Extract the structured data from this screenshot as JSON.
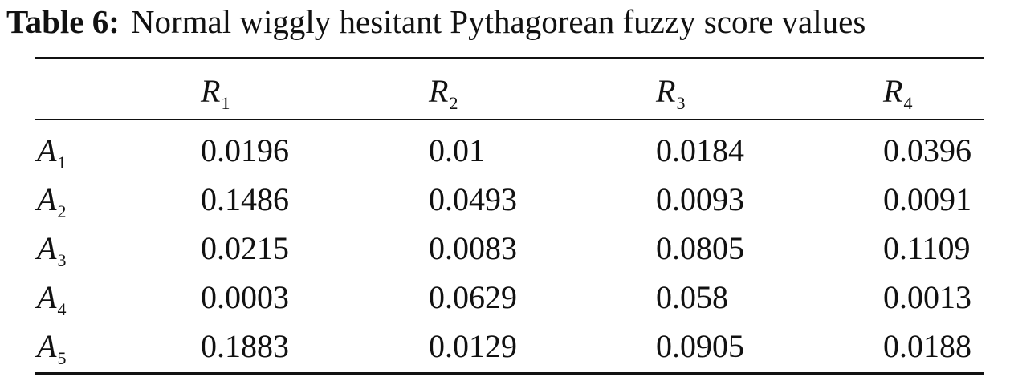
{
  "caption": {
    "label": "Table 6:",
    "text": "Normal wiggly hesitant Pythagorean fuzzy score values"
  },
  "table": {
    "columns": [
      {
        "symbol": "R",
        "sub": "1"
      },
      {
        "symbol": "R",
        "sub": "2"
      },
      {
        "symbol": "R",
        "sub": "3"
      },
      {
        "symbol": "R",
        "sub": "4"
      }
    ],
    "rows": [
      {
        "symbol": "A",
        "sub": "1",
        "values": [
          "0.0196",
          "0.01",
          "0.0184",
          "0.0396"
        ]
      },
      {
        "symbol": "A",
        "sub": "2",
        "values": [
          "0.1486",
          "0.0493",
          "0.0093",
          "0.0091"
        ]
      },
      {
        "symbol": "A",
        "sub": "3",
        "values": [
          "0.0215",
          "0.0083",
          "0.0805",
          "0.1109"
        ]
      },
      {
        "symbol": "A",
        "sub": "4",
        "values": [
          "0.0003",
          "0.0629",
          "0.058",
          "0.0013"
        ]
      },
      {
        "symbol": "A",
        "sub": "5",
        "values": [
          "0.1883",
          "0.0129",
          "0.0905",
          "0.0188"
        ]
      }
    ]
  }
}
